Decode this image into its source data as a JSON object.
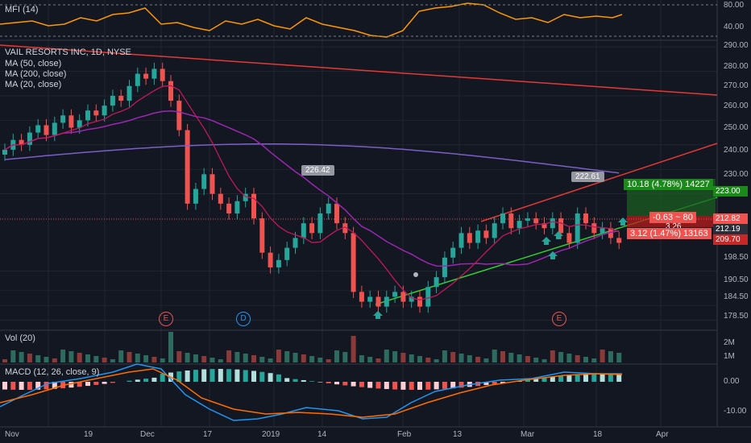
{
  "colors": {
    "background": "#131722",
    "grid": "#2a2e39",
    "up": "#26a69a",
    "down": "#ef5350",
    "ma50": "#9c27b0",
    "ma200": "#7b5fc7",
    "ma20": "#c2185b",
    "mfi": "#ff9800",
    "macd": "#2196f3",
    "signal": "#ff6d00",
    "trend_red": "#e53935",
    "trend_green": "#33cc33"
  },
  "legend": {
    "mfi": "MFI (14)",
    "symbol": "VAIL RESORTS INC, 1D, NYSE",
    "ma50": "MA (50, close)",
    "ma200": "MA (200, close)",
    "ma20": "MA (20, close)",
    "vol": "Vol (20)",
    "macd": "MACD (12, 26, close, 9)"
  },
  "price_axis": [
    "290.00",
    "280.00",
    "270.00",
    "260.00",
    "250.00",
    "240.00",
    "230.00",
    "223.00",
    "212.82",
    "212.19",
    "209.70",
    "198.50",
    "190.50",
    "184.50",
    "178.50"
  ],
  "mfi_axis": [
    "80.00",
    "40.00"
  ],
  "vol_axis": [
    "2M",
    "1M"
  ],
  "macd_axis": [
    "0.00",
    "-10.00"
  ],
  "x_axis": [
    "Nov",
    "19",
    "Dec",
    "17",
    "2019",
    "14",
    "Feb",
    "13",
    "Mar",
    "18",
    "Apr"
  ],
  "callouts": {
    "high1": "226.42",
    "high2": "222.61"
  },
  "event_marks": [
    "E",
    "D",
    "E"
  ],
  "position": {
    "target": "10.18 (4.78%) 14227",
    "mid": "-0.63 ~ 80",
    "mid2": "3.26",
    "stop": "3.12 (1.47%) 13163"
  },
  "chart_data": {
    "type": "candlestick",
    "title": "VAIL RESORTS INC, 1D, NYSE",
    "ylim": [
      176,
      292
    ],
    "price_ticks": [
      290,
      280,
      270,
      260,
      250,
      240,
      230,
      198.5,
      190.5,
      184.5,
      178.5
    ],
    "last_price": 212.82,
    "position_target": 223.0,
    "position_entry": 212.19,
    "position_stop": 209.7,
    "closes": [
      248,
      252,
      250,
      255,
      258,
      254,
      259,
      262,
      257,
      260,
      264,
      262,
      266,
      270,
      268,
      274,
      279,
      277,
      281,
      276,
      268,
      256,
      226,
      232,
      238,
      230,
      226,
      222,
      227,
      230,
      220,
      206,
      200,
      203,
      208,
      212,
      218,
      214,
      222,
      226,
      218,
      214,
      190,
      186,
      188,
      184,
      188,
      190,
      186,
      188,
      184,
      192,
      196,
      204,
      208,
      214,
      210,
      215,
      212,
      218,
      222,
      216,
      219,
      220,
      218,
      216,
      220,
      214,
      210,
      222,
      218,
      214,
      216,
      212,
      210
    ]
  }
}
